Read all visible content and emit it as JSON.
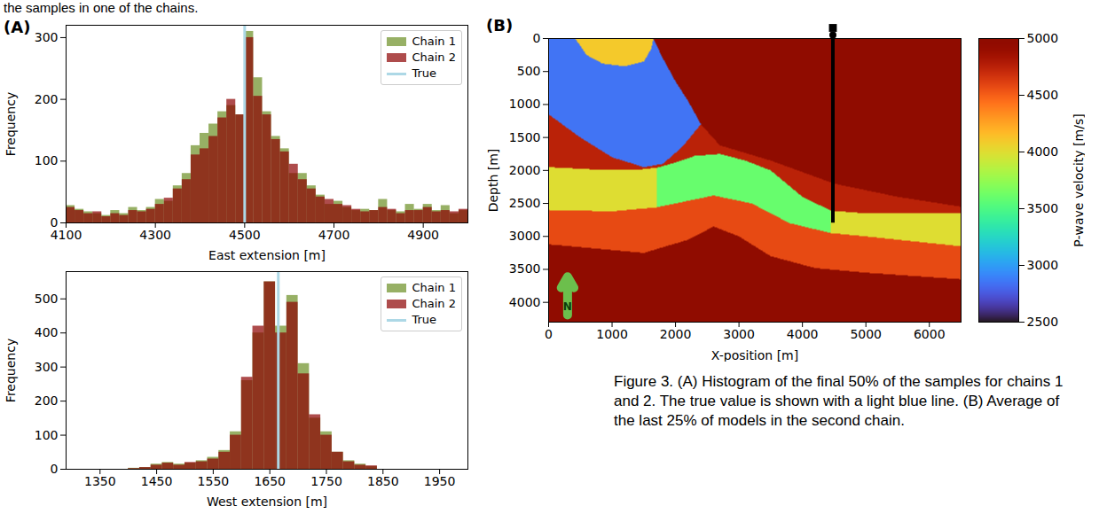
{
  "header_text": "the samples in one of the chains.",
  "panel_labels": [
    "(A)",
    "(B)"
  ],
  "caption": "Figure 3. (A) Histogram of the final 50% of the samples for chains 1 and 2. The true value is shown with a light blue line. (B) Average of the last 25% of models in the second chain.",
  "chart_data": [
    {
      "type": "histogram",
      "xlabel": "East extension [m]",
      "ylabel": "Frequency",
      "bins": [
        4100,
        4120,
        4140,
        4160,
        4180,
        4200,
        4220,
        4240,
        4260,
        4280,
        4300,
        4320,
        4340,
        4360,
        4380,
        4400,
        4420,
        4440,
        4460,
        4480,
        4500,
        4520,
        4540,
        4560,
        4580,
        4600,
        4620,
        4640,
        4660,
        4680,
        4700,
        4720,
        4740,
        4760,
        4780,
        4800,
        4820,
        4840,
        4860,
        4880,
        4900,
        4920,
        4940,
        4960,
        4980,
        5000
      ],
      "series": [
        {
          "name": "Chain 1",
          "color": "#6b8e23",
          "values": [
            28,
            22,
            18,
            15,
            12,
            20,
            15,
            25,
            20,
            25,
            38,
            35,
            60,
            80,
            125,
            145,
            160,
            180,
            190,
            175,
            310,
            235,
            180,
            140,
            120,
            80,
            80,
            60,
            45,
            30,
            35,
            25,
            20,
            22,
            20,
            38,
            20,
            18,
            30,
            22,
            30,
            20,
            28,
            15,
            20
          ]
        },
        {
          "name": "Chain 2",
          "color": "#8b0000",
          "values": [
            25,
            20,
            15,
            18,
            10,
            15,
            12,
            20,
            18,
            22,
            30,
            40,
            55,
            70,
            110,
            120,
            140,
            170,
            200,
            175,
            300,
            205,
            175,
            135,
            115,
            95,
            70,
            55,
            42,
            38,
            30,
            28,
            22,
            18,
            20,
            25,
            22,
            15,
            20,
            20,
            25,
            18,
            20,
            18,
            22
          ]
        }
      ],
      "reference": {
        "name": "True",
        "value": 4500,
        "color": "#add8e6"
      },
      "xlim": [
        4100,
        5000
      ],
      "xticks": [
        4100,
        4300,
        4500,
        4700,
        4900
      ],
      "ylim": [
        0,
        320
      ],
      "yticks": [
        0,
        100,
        200,
        300
      ],
      "legend": "upper right"
    },
    {
      "type": "histogram",
      "xlabel": "West extension [m]",
      "ylabel": "Frequency",
      "bins": [
        1400,
        1420,
        1440,
        1460,
        1480,
        1500,
        1520,
        1540,
        1560,
        1580,
        1600,
        1620,
        1640,
        1660,
        1680,
        1700,
        1720,
        1740,
        1760,
        1780,
        1800,
        1820,
        1840
      ],
      "series": [
        {
          "name": "Chain 1",
          "color": "#6b8e23",
          "values": [
            3,
            5,
            15,
            20,
            15,
            18,
            25,
            35,
            55,
            110,
            260,
            400,
            550,
            420,
            510,
            310,
            150,
            110,
            50,
            25,
            15,
            8
          ]
        },
        {
          "name": "Chain 2",
          "color": "#8b0000",
          "values": [
            2,
            5,
            12,
            18,
            12,
            20,
            22,
            30,
            50,
            100,
            270,
            420,
            550,
            400,
            490,
            280,
            160,
            100,
            50,
            22,
            12,
            10
          ]
        }
      ],
      "reference": {
        "name": "True",
        "value": 1665,
        "color": "#add8e6"
      },
      "xlim": [
        1290,
        2000
      ],
      "xticks": [
        1350,
        1450,
        1550,
        1650,
        1750,
        1850,
        1950
      ],
      "ylim": [
        0,
        580
      ],
      "yticks": [
        0,
        100,
        200,
        300,
        400,
        500
      ],
      "legend": "upper right"
    },
    {
      "type": "velocity_model",
      "xlabel": "X-position [m]",
      "ylabel": "Depth [m]",
      "xlim": [
        0,
        6500
      ],
      "xticks": [
        0,
        1000,
        2000,
        3000,
        4000,
        5000,
        6000
      ],
      "ylim": [
        0,
        4300
      ],
      "yticks": [
        0,
        500,
        1000,
        1500,
        2000,
        2500,
        3000,
        3500,
        4000
      ],
      "regions": [
        {
          "velocity": 5000,
          "polygon": [
            [
              0,
              0
            ],
            [
              6500,
              0
            ],
            [
              6500,
              4300
            ],
            [
              0,
              4300
            ]
          ]
        },
        {
          "velocity": 4750,
          "polygon": [
            [
              0,
              0
            ],
            [
              1650,
              0
            ],
            [
              1800,
              300
            ],
            [
              2000,
              650
            ],
            [
              2200,
              950
            ],
            [
              2400,
              1300
            ],
            [
              2700,
              1620
            ],
            [
              3500,
              1850
            ],
            [
              4500,
              2200
            ],
            [
              5500,
              2400
            ],
            [
              6500,
              2550
            ],
            [
              6500,
              2650
            ],
            [
              5000,
              2650
            ],
            [
              4450,
              2610
            ],
            [
              4000,
              2400
            ],
            [
              3500,
              2000
            ],
            [
              3100,
              1850
            ],
            [
              2700,
              1750
            ],
            [
              2300,
              1780
            ],
            [
              2000,
              1880
            ],
            [
              1700,
              1960
            ],
            [
              1400,
              1990
            ],
            [
              800,
              1990
            ],
            [
              0,
              1950
            ]
          ]
        },
        {
          "velocity": 4000,
          "polygon": [
            [
              0,
              1950
            ],
            [
              800,
              1990
            ],
            [
              1400,
              1990
            ],
            [
              1700,
              1960
            ],
            [
              2000,
              1880
            ],
            [
              2300,
              1780
            ],
            [
              2700,
              1750
            ],
            [
              3100,
              1850
            ],
            [
              3500,
              2000
            ],
            [
              4000,
              2400
            ],
            [
              4450,
              2610
            ],
            [
              5000,
              2650
            ],
            [
              6500,
              2650
            ],
            [
              6500,
              3150
            ],
            [
              5000,
              3000
            ],
            [
              4450,
              2950
            ],
            [
              3800,
              2800
            ],
            [
              3200,
              2500
            ],
            [
              2600,
              2380
            ],
            [
              2000,
              2500
            ],
            [
              1700,
              2560
            ],
            [
              1000,
              2620
            ],
            [
              0,
              2600
            ]
          ]
        },
        {
          "velocity": 3600,
          "polygon": [
            [
              1700,
              1960
            ],
            [
              2000,
              1880
            ],
            [
              2300,
              1780
            ],
            [
              2700,
              1750
            ],
            [
              3100,
              1850
            ],
            [
              3500,
              2000
            ],
            [
              4000,
              2400
            ],
            [
              4450,
              2610
            ],
            [
              4450,
              2950
            ],
            [
              3800,
              2800
            ],
            [
              3200,
              2500
            ],
            [
              2600,
              2380
            ],
            [
              2000,
              2500
            ],
            [
              1700,
              2560
            ]
          ]
        },
        {
          "velocity": 4575,
          "polygon": [
            [
              0,
              2600
            ],
            [
              1000,
              2620
            ],
            [
              1700,
              2560
            ],
            [
              2000,
              2500
            ],
            [
              2600,
              2380
            ],
            [
              3200,
              2500
            ],
            [
              3800,
              2800
            ],
            [
              4450,
              2950
            ],
            [
              5000,
              3000
            ],
            [
              6500,
              3150
            ],
            [
              6500,
              3650
            ],
            [
              5000,
              3550
            ],
            [
              4200,
              3480
            ],
            [
              3500,
              3300
            ],
            [
              3000,
              3000
            ],
            [
              2600,
              2850
            ],
            [
              2200,
              3050
            ],
            [
              1500,
              3250
            ],
            [
              0,
              3120
            ]
          ]
        },
        {
          "velocity": 2850,
          "polygon": [
            [
              0,
              0
            ],
            [
              1650,
              0
            ],
            [
              1800,
              300
            ],
            [
              2000,
              650
            ],
            [
              2200,
              950
            ],
            [
              2400,
              1300
            ],
            [
              2100,
              1650
            ],
            [
              1800,
              1900
            ],
            [
              1500,
              1950
            ],
            [
              1000,
              1800
            ],
            [
              500,
              1500
            ],
            [
              0,
              1150
            ]
          ]
        },
        {
          "velocity": 4100,
          "polygon": [
            [
              420,
              0
            ],
            [
              600,
              250
            ],
            [
              850,
              380
            ],
            [
              1200,
              420
            ],
            [
              1500,
              350
            ],
            [
              1620,
              150
            ],
            [
              1650,
              0
            ]
          ]
        }
      ],
      "well": {
        "x": 4480,
        "depth": [
          0,
          2800
        ]
      },
      "north_label": "N",
      "colorbar": {
        "label": "P-wave velocity [m/s]",
        "range": [
          2500,
          5000
        ],
        "ticks": [
          2500,
          3000,
          3500,
          4000,
          4500,
          5000
        ],
        "color": "turbo"
      }
    }
  ]
}
